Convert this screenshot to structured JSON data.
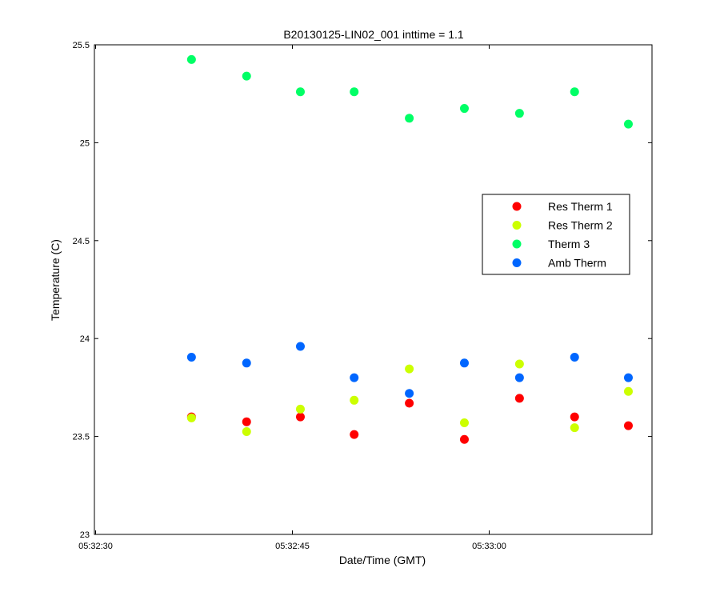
{
  "chart_data": {
    "type": "scatter",
    "title": "B20130125-LIN02_001 inttime = 1.1",
    "xlabel": "Date/Time (GMT)",
    "ylabel": "Temperature (C)",
    "xlim": [
      "05:32:30",
      "05:33:12.5"
    ],
    "ylim": [
      23,
      25.5
    ],
    "x_ticks": [
      "05:32:30",
      "05:32:45",
      "05:33:00"
    ],
    "y_ticks": [
      "23",
      "23.5",
      "24",
      "24.5",
      "25",
      "25.5"
    ],
    "grid": false,
    "legend_position": "right",
    "x": [
      "05:32:37.4",
      "05:32:41.6",
      "05:32:45.7",
      "05:32:49.8",
      "05:32:54.0",
      "05:32:58.2",
      "05:33:02.4",
      "05:33:06.6",
      "05:33:10.7"
    ],
    "series": [
      {
        "name": "Res Therm 1",
        "color": "#ff0000",
        "values": [
          23.6,
          23.575,
          23.6,
          23.51,
          23.67,
          23.485,
          23.695,
          23.6,
          23.555
        ]
      },
      {
        "name": "Res Therm 2",
        "color": "#ccff00",
        "values": [
          23.595,
          23.525,
          23.64,
          23.685,
          23.845,
          23.57,
          23.87,
          23.545,
          23.73
        ]
      },
      {
        "name": "Therm 3",
        "color": "#00ff66",
        "values": [
          25.425,
          25.34,
          25.26,
          25.26,
          25.125,
          25.175,
          25.15,
          25.26,
          25.095
        ]
      },
      {
        "name": "Amb Therm",
        "color": "#0066ff",
        "values": [
          23.905,
          23.875,
          23.96,
          23.8,
          23.72,
          23.875,
          23.8,
          23.905,
          23.8
        ]
      }
    ]
  }
}
